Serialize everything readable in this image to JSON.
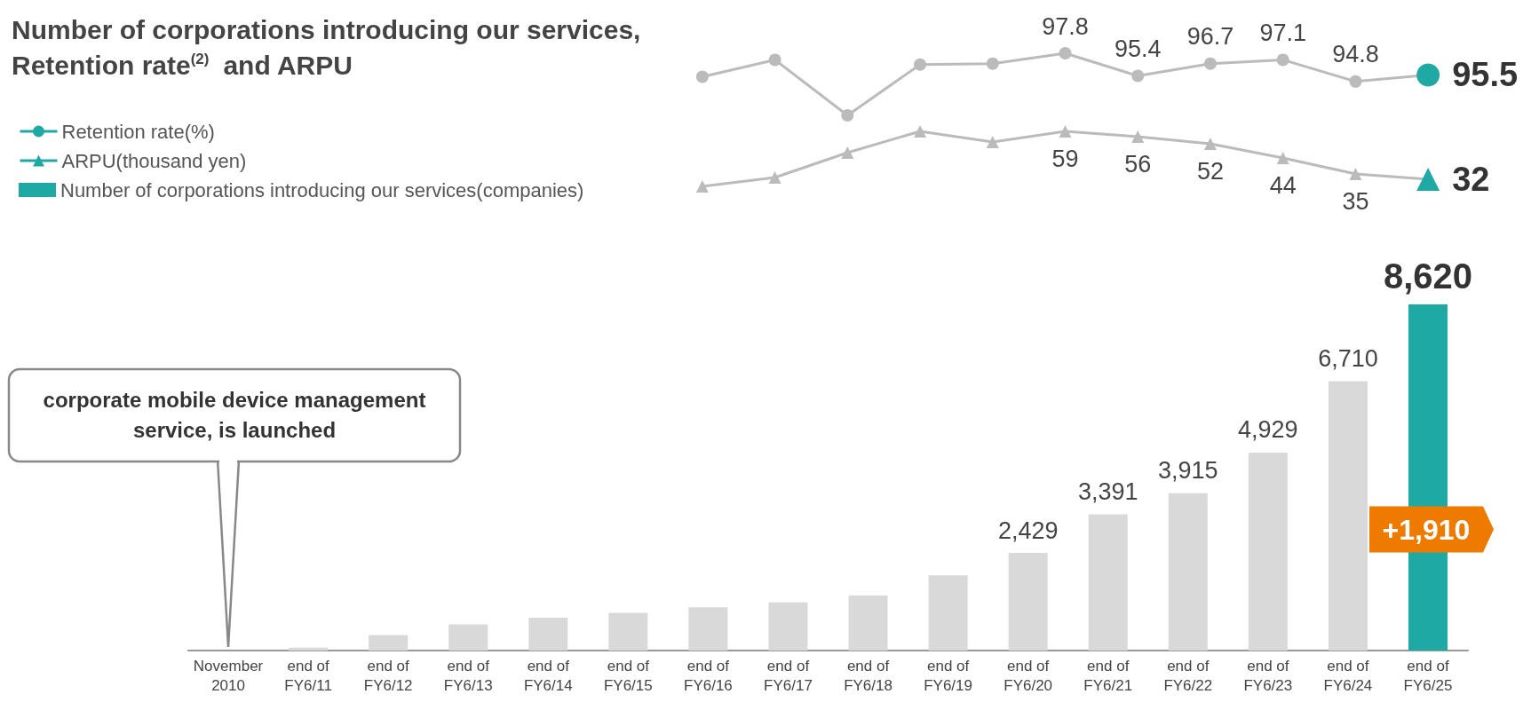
{
  "chart_data": [
    {
      "type": "line",
      "title": "Number of corporations introducing our services, Retention rate$^{(2)}$ and ARPU",
      "legend": "bottom left",
      "marker": "circle",
      "tick_labels": false,
      "categories": [
        null,
        null,
        null,
        null,
        null,
        null,
        null,
        null,
        null,
        null,
        null
      ],
      "series": [
        {
          "name": "Retention rate(%)",
          "colors": [
            "#bbbbbb",
            "#bbbbbb",
            "#bbbbbb",
            "#bbbbbb",
            "#bbbbbb",
            "#bbbbbb",
            "#bbbbbb",
            "#bbbbbb",
            "#bbbbbb",
            "#bbbbbb",
            "#1fa9a5"
          ],
          "color": "#bbbbbb",
          "values": [
            95.3,
            97.1,
            91.2,
            96.6,
            96.7,
            97.8,
            95.4,
            96.7,
            97.1,
            94.8,
            95.5
          ],
          "value_labels": [
            null,
            null,
            null,
            null,
            null,
            "97.8",
            "95.4",
            "96.7",
            "97.1",
            "94.8",
            "95.5"
          ]
        }
      ]
    },
    {
      "type": "line",
      "legend": "bottom left",
      "marker": "triangle",
      "tick_labels": false,
      "categories": [
        null,
        null,
        null,
        null,
        null,
        null,
        null,
        null,
        null,
        null,
        null
      ],
      "series": [
        {
          "name": "ARPU(thousand yen)",
          "colors": [
            "#bbbbbb",
            "#bbbbbb",
            "#bbbbbb",
            "#bbbbbb",
            "#bbbbbb",
            "#bbbbbb",
            "#bbbbbb",
            "#bbbbbb",
            "#bbbbbb",
            "#bbbbbb",
            "#1fa9a5"
          ],
          "color": "#bbbbbb",
          "values": [
            28,
            33,
            47,
            59,
            53,
            59,
            56,
            52,
            44,
            35,
            32
          ],
          "value_labels": [
            null,
            null,
            null,
            null,
            null,
            "59",
            "56",
            "52",
            "44",
            "35",
            "32"
          ]
        }
      ]
    },
    {
      "type": "bar",
      "legend": "top left",
      "categories": [
        "November 2010",
        "end of FY6/11",
        "end of FY6/12",
        "end of FY6/13",
        "end of FY6/14",
        "end of FY6/15",
        "end of FY6/16",
        "end of FY6/17",
        "end of FY6/18",
        "end of FY6/19",
        "end of FY6/20",
        "end of FY6/21",
        "end of FY6/22",
        "end of FY6/23",
        "end of FY6/24",
        "end of FY6/25"
      ],
      "series": [
        {
          "name": "Number of corporations introducing our services(companies)",
          "colors": [
            "#d9d9d9",
            "#d9d9d9",
            "#d9d9d9",
            "#d9d9d9",
            "#d9d9d9",
            "#d9d9d9",
            "#d9d9d9",
            "#d9d9d9",
            "#d9d9d9",
            "#d9d9d9",
            "#d9d9d9",
            "#d9d9d9",
            "#d9d9d9",
            "#d9d9d9",
            "#d9d9d9",
            "#1fa9a5"
          ],
          "values": [
            null,
            70,
            385,
            650,
            820,
            940,
            1080,
            1200,
            1370,
            1875,
            2429,
            3391,
            3915,
            4929,
            6710,
            8620
          ],
          "value_labels": [
            null,
            null,
            null,
            null,
            null,
            null,
            null,
            null,
            null,
            null,
            "2,429",
            "3,391",
            "3,915",
            "4,929",
            "6,710",
            "8,620"
          ]
        }
      ],
      "annotations": [
        "corporate mobile device management service, is launched",
        "+1,910"
      ]
    }
  ]
}
